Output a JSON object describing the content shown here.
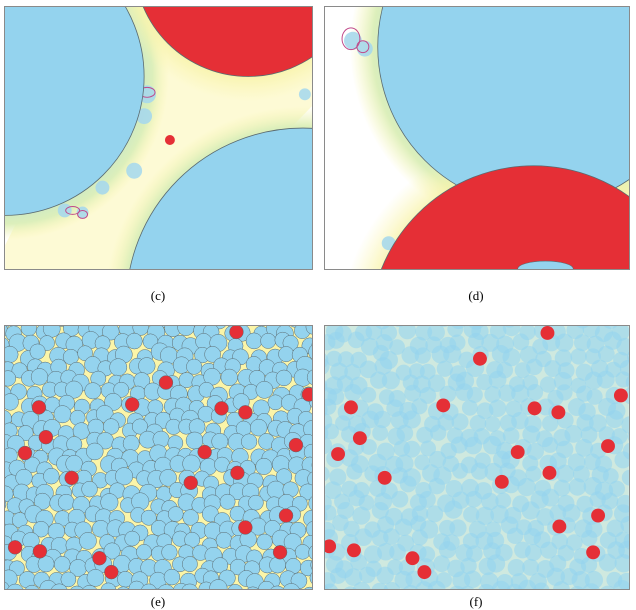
{
  "figure": {
    "panels": [
      {
        "caption": "(c)"
      },
      {
        "caption": "(d)"
      },
      {
        "caption": "(e)"
      },
      {
        "caption": "(f)"
      }
    ]
  },
  "colors": {
    "particle_blue": "#94d3ee",
    "particle_red": "#e52f36",
    "film_yellow": "#f8f3a8",
    "film_green": "#cde9c6",
    "outline": "#5a6a70",
    "ellipse_pink": "#c04a8a"
  }
}
